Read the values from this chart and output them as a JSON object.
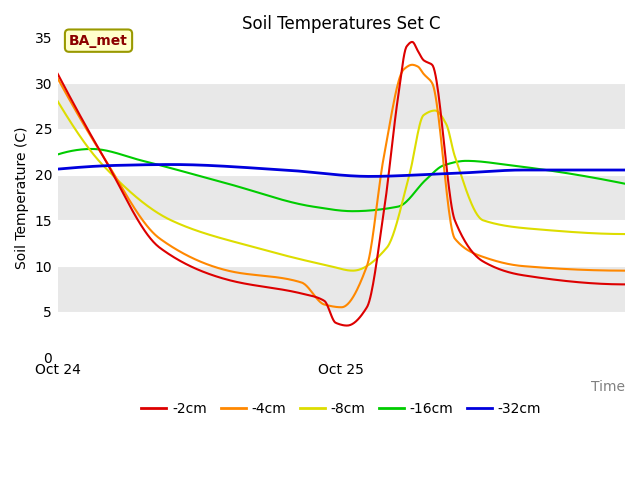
{
  "title": "Soil Temperatures Set C",
  "xlabel": "Time",
  "ylabel": "Soil Temperature (C)",
  "ylim": [
    0,
    35
  ],
  "yticks": [
    0,
    5,
    10,
    15,
    20,
    25,
    30,
    35
  ],
  "xtick_positions": [
    0.0,
    0.5
  ],
  "xtick_labels": [
    "Oct 24",
    "Oct 25"
  ],
  "annotation_text": "BA_met",
  "fig_bg": "#ffffff",
  "plot_bg": "#ffffff",
  "band_color": "#e8e8e8",
  "series": {
    "-2cm": {
      "color": "#dd0000",
      "lw": 1.5
    },
    "-4cm": {
      "color": "#ff8800",
      "lw": 1.5
    },
    "-8cm": {
      "color": "#dddd00",
      "lw": 1.5
    },
    "-16cm": {
      "color": "#00cc00",
      "lw": 1.5
    },
    "-32cm": {
      "color": "#0000dd",
      "lw": 2.0
    }
  },
  "ctrl_2cm_t": [
    0.0,
    0.08,
    0.18,
    0.3,
    0.43,
    0.47,
    0.49,
    0.51,
    0.545,
    0.575,
    0.6,
    0.615,
    0.625,
    0.635,
    0.645,
    0.66,
    0.7,
    0.75,
    0.82,
    1.0
  ],
  "ctrl_2cm_y": [
    31.0,
    22.0,
    12.0,
    8.5,
    7.0,
    6.2,
    3.8,
    3.5,
    5.5,
    16.0,
    28.5,
    34.0,
    34.5,
    33.5,
    32.5,
    32.0,
    15.0,
    10.5,
    9.0,
    8.0
  ],
  "ctrl_4cm_t": [
    0.0,
    0.08,
    0.18,
    0.3,
    0.43,
    0.47,
    0.5,
    0.545,
    0.575,
    0.61,
    0.625,
    0.635,
    0.645,
    0.66,
    0.7,
    0.75,
    0.82,
    1.0
  ],
  "ctrl_4cm_y": [
    30.5,
    22.0,
    13.0,
    9.5,
    8.2,
    5.8,
    5.5,
    10.0,
    22.0,
    31.5,
    32.0,
    31.8,
    31.0,
    30.0,
    13.0,
    11.0,
    10.0,
    9.5
  ],
  "ctrl_8cm_t": [
    0.0,
    0.08,
    0.2,
    0.35,
    0.48,
    0.52,
    0.58,
    0.62,
    0.645,
    0.665,
    0.685,
    0.7,
    0.75,
    0.85,
    1.0
  ],
  "ctrl_8cm_y": [
    28.0,
    21.0,
    15.0,
    12.0,
    10.0,
    9.5,
    12.0,
    20.0,
    26.5,
    27.0,
    25.5,
    22.0,
    15.0,
    14.0,
    13.5
  ],
  "ctrl_16cm_t": [
    0.0,
    0.06,
    0.15,
    0.3,
    0.45,
    0.52,
    0.6,
    0.65,
    0.68,
    0.72,
    0.8,
    1.0
  ],
  "ctrl_16cm_y": [
    22.2,
    22.8,
    21.5,
    19.0,
    16.5,
    16.0,
    16.5,
    19.5,
    21.0,
    21.5,
    21.0,
    19.0
  ],
  "ctrl_32cm_t": [
    0.0,
    0.1,
    0.2,
    0.4,
    0.55,
    0.65,
    0.72,
    0.82,
    1.0
  ],
  "ctrl_32cm_y": [
    20.6,
    21.0,
    21.1,
    20.5,
    19.8,
    20.0,
    20.2,
    20.5,
    20.5
  ]
}
